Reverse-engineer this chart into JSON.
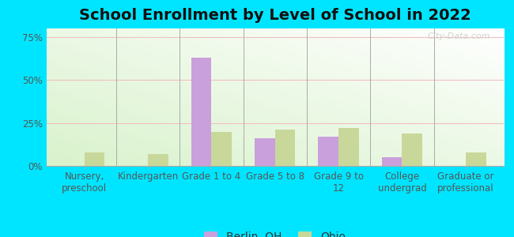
{
  "title": "School Enrollment by Level of School in 2022",
  "categories": [
    "Nursery,\npreschool",
    "Kindergarten",
    "Grade 1 to 4",
    "Grade 5 to 8",
    "Grade 9 to\n12",
    "College\nundergrad",
    "Graduate or\nprofessional"
  ],
  "berlin_values": [
    0,
    0,
    63,
    16,
    17,
    5,
    0
  ],
  "ohio_values": [
    8,
    7,
    20,
    21,
    22,
    19,
    8
  ],
  "berlin_color": "#c9a0dc",
  "ohio_color": "#c8d89a",
  "ylim": [
    0,
    80
  ],
  "yticks": [
    0,
    25,
    50,
    75
  ],
  "ytick_labels": [
    "0%",
    "25%",
    "50%",
    "75%"
  ],
  "legend_berlin": "Berlin, OH",
  "legend_ohio": "Ohio",
  "background_color": "#00e5ff",
  "watermark": "City-Data.com",
  "title_fontsize": 14,
  "tick_fontsize": 8.5,
  "legend_fontsize": 10,
  "bar_width": 0.32
}
